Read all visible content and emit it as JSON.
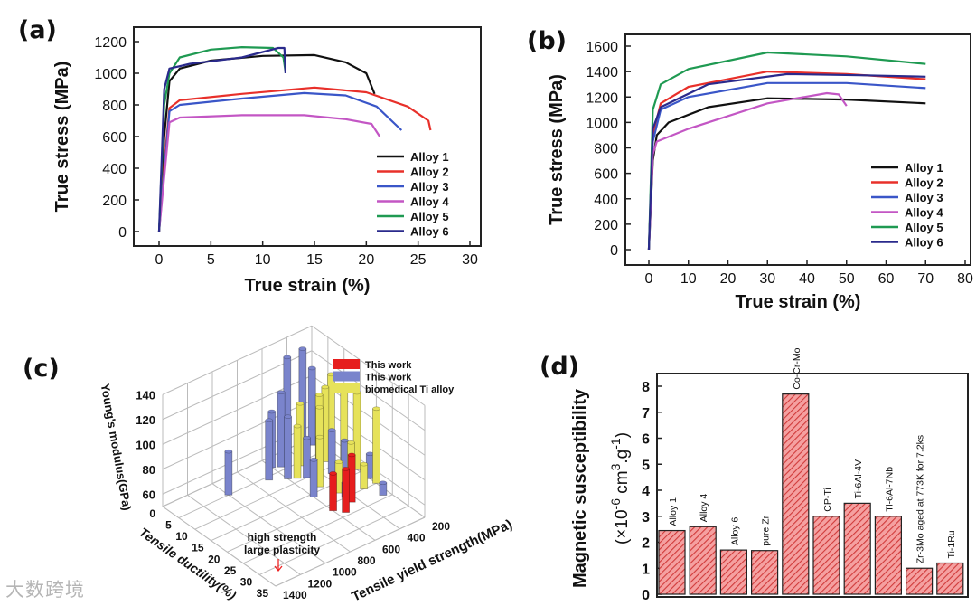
{
  "panel_labels": {
    "a": "(a)",
    "b": "(b)",
    "c": "(c)",
    "d": "(d)"
  },
  "watermark": "大数跨境",
  "colors": {
    "Alloy 1": "#111111",
    "Alloy 2": "#e8302a",
    "Alloy 3": "#3a56c8",
    "Alloy 4": "#c356c4",
    "Alloy 5": "#1f9a52",
    "Alloy 6": "#2a2a8c",
    "red_bar": "#e61e1e",
    "blue_bar": "#7a84cc",
    "yellow_bar": "#e6e25a",
    "hatch_bar": "#f08080"
  },
  "chart_data": [
    {
      "id": "a",
      "type": "line",
      "xlabel": "True strain (%)",
      "ylabel": "True stress (MPa)",
      "xlim": [
        -3,
        30
      ],
      "ylim": [
        -80,
        1300
      ],
      "xticks": [
        0,
        5,
        10,
        15,
        20,
        25,
        30
      ],
      "yticks": [
        0,
        200,
        400,
        600,
        800,
        1000,
        1200
      ],
      "legend": "bottom-right",
      "series": [
        {
          "name": "Alloy 1",
          "x": [
            0,
            0.5,
            1,
            2,
            5,
            10,
            15,
            18,
            20,
            20.8
          ],
          "y": [
            0,
            600,
            950,
            1030,
            1080,
            1110,
            1115,
            1070,
            1000,
            870
          ]
        },
        {
          "name": "Alloy 2",
          "x": [
            0,
            0.6,
            1,
            2,
            8,
            15,
            20,
            24,
            26,
            26.2
          ],
          "y": [
            0,
            500,
            780,
            830,
            870,
            910,
            880,
            790,
            700,
            640
          ]
        },
        {
          "name": "Alloy 3",
          "x": [
            0,
            1,
            2,
            8,
            14,
            18,
            21,
            23.4
          ],
          "y": [
            0,
            760,
            800,
            840,
            875,
            860,
            790,
            640
          ]
        },
        {
          "name": "Alloy 4",
          "x": [
            0,
            1,
            2,
            8,
            14,
            18,
            20.5,
            21.3
          ],
          "y": [
            0,
            690,
            720,
            735,
            735,
            710,
            680,
            600
          ]
        },
        {
          "name": "Alloy 5",
          "x": [
            0,
            0.5,
            1,
            2,
            5,
            8,
            11,
            12,
            12.2
          ],
          "y": [
            0,
            800,
            1000,
            1100,
            1150,
            1165,
            1160,
            1100,
            1010
          ]
        },
        {
          "name": "Alloy 6",
          "x": [
            0,
            0.5,
            1,
            3,
            8,
            11.5,
            12.1,
            12.2
          ],
          "y": [
            0,
            900,
            1030,
            1060,
            1100,
            1160,
            1160,
            1000
          ]
        }
      ]
    },
    {
      "id": "b",
      "type": "line",
      "xlabel": "True strain (%)",
      "ylabel": "True stress (MPa)",
      "xlim": [
        -2,
        80
      ],
      "ylim": [
        -100,
        1700
      ],
      "xticks": [
        0,
        10,
        20,
        30,
        40,
        50,
        60,
        70,
        80
      ],
      "yticks": [
        0,
        200,
        400,
        600,
        800,
        1000,
        1200,
        1400,
        1600
      ],
      "legend": "right",
      "series": [
        {
          "name": "Alloy 1",
          "x": [
            0,
            1,
            2,
            5,
            15,
            30,
            50,
            70
          ],
          "y": [
            0,
            700,
            900,
            1000,
            1120,
            1190,
            1180,
            1150
          ]
        },
        {
          "name": "Alloy 2",
          "x": [
            0,
            1,
            3,
            10,
            30,
            50,
            70
          ],
          "y": [
            0,
            900,
            1150,
            1280,
            1400,
            1380,
            1340
          ]
        },
        {
          "name": "Alloy 3",
          "x": [
            0,
            1,
            3,
            10,
            30,
            50,
            70
          ],
          "y": [
            0,
            850,
            1100,
            1200,
            1310,
            1310,
            1270
          ]
        },
        {
          "name": "Alloy 4",
          "x": [
            0,
            1,
            2,
            10,
            30,
            45,
            48,
            50
          ],
          "y": [
            0,
            750,
            850,
            950,
            1150,
            1230,
            1220,
            1130
          ]
        },
        {
          "name": "Alloy 5",
          "x": [
            0,
            1,
            3,
            10,
            30,
            50,
            70
          ],
          "y": [
            0,
            1100,
            1300,
            1420,
            1550,
            1520,
            1460
          ]
        },
        {
          "name": "Alloy 6",
          "x": [
            0,
            1,
            3,
            15,
            35,
            55,
            70
          ],
          "y": [
            0,
            950,
            1120,
            1300,
            1380,
            1370,
            1360
          ]
        }
      ]
    },
    {
      "id": "c",
      "type": "bar3d",
      "xlabel": "Tensile ductility(%)",
      "ylabel": "Tensile yield strength(MPa)",
      "zlabel": "Young's modulus(GPa)",
      "xticks": [
        0,
        5,
        10,
        15,
        20,
        25,
        30,
        35
      ],
      "yticks": [
        200,
        400,
        600,
        800,
        1000,
        1200,
        1400
      ],
      "zticks": [
        60,
        80,
        100,
        120,
        140
      ],
      "annotation": [
        "high strength",
        "large plasticity"
      ],
      "legend": [
        {
          "label": "This work",
          "group": "red"
        },
        {
          "label": "This work",
          "group": "blue"
        },
        {
          "label": "biomedical Ti alloy",
          "group": "yellow"
        }
      ],
      "bars": [
        {
          "d": 5,
          "s": 1000,
          "m": 85,
          "g": "blue"
        },
        {
          "d": 3,
          "s": 600,
          "m": 95,
          "g": "blue"
        },
        {
          "d": 2,
          "s": 450,
          "m": 130,
          "g": "blue"
        },
        {
          "d": 1,
          "s": 300,
          "m": 128,
          "g": "blue"
        },
        {
          "d": 6,
          "s": 700,
          "m": 98,
          "g": "blue"
        },
        {
          "d": 4,
          "s": 550,
          "m": 110,
          "g": "blue"
        },
        {
          "d": 8,
          "s": 600,
          "m": 100,
          "g": "blue"
        },
        {
          "d": 2,
          "s": 250,
          "m": 112,
          "g": "blue"
        },
        {
          "d": 10,
          "s": 500,
          "m": 82,
          "g": "blue"
        },
        {
          "d": 12,
          "s": 350,
          "m": 85,
          "g": "blue"
        },
        {
          "d": 16,
          "s": 600,
          "m": 80,
          "g": "blue"
        },
        {
          "d": 14,
          "s": 300,
          "m": 78,
          "g": "blue"
        },
        {
          "d": 20,
          "s": 450,
          "m": 62,
          "g": "blue"
        },
        {
          "d": 24,
          "s": 250,
          "m": 60,
          "g": "blue"
        },
        {
          "d": 18,
          "s": 200,
          "m": 70,
          "g": "blue"
        },
        {
          "d": 6,
          "s": 450,
          "m": 100,
          "g": "yellow"
        },
        {
          "d": 8,
          "s": 300,
          "m": 110,
          "g": "yellow"
        },
        {
          "d": 10,
          "s": 400,
          "m": 112,
          "g": "yellow"
        },
        {
          "d": 12,
          "s": 450,
          "m": 108,
          "g": "yellow"
        },
        {
          "d": 9,
          "s": 550,
          "m": 92,
          "g": "yellow"
        },
        {
          "d": 14,
          "s": 500,
          "m": 90,
          "g": "yellow"
        },
        {
          "d": 6,
          "s": 200,
          "m": 112,
          "g": "yellow"
        },
        {
          "d": 10,
          "s": 200,
          "m": 108,
          "g": "yellow"
        },
        {
          "d": 14,
          "s": 200,
          "m": 112,
          "g": "yellow"
        },
        {
          "d": 16,
          "s": 300,
          "m": 80,
          "g": "yellow"
        },
        {
          "d": 20,
          "s": 300,
          "m": 70,
          "g": "yellow"
        },
        {
          "d": 20,
          "s": 200,
          "m": 110,
          "g": "yellow"
        },
        {
          "d": 18,
          "s": 450,
          "m": 75,
          "g": "yellow"
        },
        {
          "d": 22,
          "s": 600,
          "m": 80,
          "g": "red"
        },
        {
          "d": 24,
          "s": 550,
          "m": 85,
          "g": "red"
        },
        {
          "d": 22,
          "s": 450,
          "m": 88,
          "g": "red"
        }
      ]
    },
    {
      "id": "d",
      "type": "bar",
      "ylabel": "Magnetic susceptibility",
      "yunit": {
        "open": "(×10",
        "exp1": "-6",
        "mid": " cm",
        "exp2": "3",
        "mid2": ".g",
        "exp3": "-1",
        "close": ")"
      },
      "ylim": [
        0,
        8.5
      ],
      "yticks": [
        0,
        1,
        2,
        3,
        4,
        5,
        6,
        7,
        8
      ],
      "categories": [
        "Alloy 1",
        "Alloy 4",
        "Alloy 6",
        "pure Zr",
        "Co-Cr-Mo",
        "CP-Ti",
        "Ti-6Al-4V",
        "Ti-6Al-7Nb",
        "Zr-3Mo aged at 773K for 7.2ks",
        "Ti-1Ru"
      ],
      "values": [
        2.45,
        2.6,
        1.7,
        1.68,
        7.7,
        3.0,
        3.5,
        3.0,
        1.0,
        1.2
      ]
    }
  ]
}
